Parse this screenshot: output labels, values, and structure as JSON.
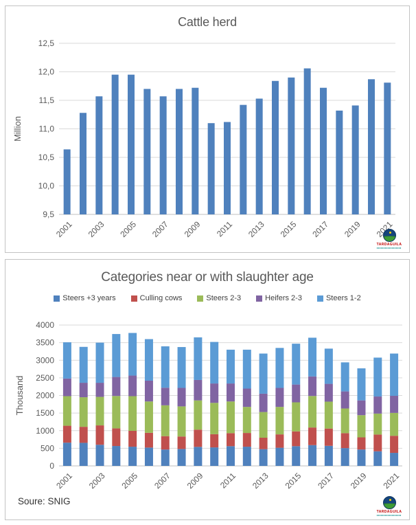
{
  "logo": {
    "text": "TARDAGUILA"
  },
  "chart_data": [
    {
      "type": "bar",
      "title": "Cattle herd",
      "ylabel": "Million",
      "ylim": [
        9.5,
        12.5
      ],
      "yticks": [
        9.5,
        10.0,
        10.5,
        11.0,
        11.5,
        12.0,
        12.5
      ],
      "ytick_labels": [
        "9,5",
        "10,0",
        "10,5",
        "11,0",
        "11,5",
        "12,0",
        "12,5"
      ],
      "categories": [
        2001,
        2002,
        2003,
        2004,
        2005,
        2006,
        2007,
        2008,
        2009,
        2010,
        2011,
        2012,
        2013,
        2014,
        2015,
        2016,
        2017,
        2018,
        2019,
        2020,
        2021
      ],
      "xtick_labels": [
        "2001",
        "2003",
        "2005",
        "2007",
        "2009",
        "2011",
        "2013",
        "2015",
        "2017",
        "2019",
        "2021"
      ],
      "values": [
        10.64,
        11.28,
        11.57,
        11.95,
        11.95,
        11.7,
        11.57,
        11.7,
        11.72,
        11.1,
        11.12,
        11.42,
        11.53,
        11.84,
        11.9,
        12.06,
        11.72,
        11.32,
        11.41,
        11.87,
        11.81
      ],
      "bar_color": "#4F81BD",
      "grid": true,
      "legend_position": "none"
    },
    {
      "type": "bar",
      "stacked": true,
      "title": "Categories near or with slaughter age",
      "ylabel": "Thousand",
      "ylim": [
        0,
        4000
      ],
      "yticks": [
        0,
        500,
        1000,
        1500,
        2000,
        2500,
        3000,
        3500,
        4000
      ],
      "ytick_labels": [
        "0",
        "500",
        "1000",
        "1500",
        "2000",
        "2500",
        "3000",
        "3500",
        "4000"
      ],
      "categories": [
        2001,
        2002,
        2003,
        2004,
        2005,
        2006,
        2007,
        2008,
        2009,
        2010,
        2011,
        2012,
        2013,
        2014,
        2015,
        2016,
        2017,
        2018,
        2019,
        2020,
        2021
      ],
      "xtick_labels": [
        "2001",
        "2003",
        "2005",
        "2007",
        "2009",
        "2011",
        "2013",
        "2015",
        "2017",
        "2019",
        "2021"
      ],
      "series": [
        {
          "name": "Steers +3 years",
          "color": "#4F81BD",
          "values": [
            660,
            655,
            600,
            565,
            545,
            520,
            465,
            480,
            540,
            525,
            560,
            545,
            475,
            515,
            560,
            590,
            570,
            505,
            465,
            415,
            370
          ]
        },
        {
          "name": "Culling cows",
          "color": "#C0504D",
          "values": [
            480,
            455,
            550,
            500,
            450,
            420,
            380,
            355,
            490,
            375,
            370,
            390,
            325,
            380,
            420,
            500,
            490,
            425,
            345,
            475,
            485
          ]
        },
        {
          "name": "Steers 2-3",
          "color": "#9BBB59",
          "values": [
            840,
            840,
            810,
            920,
            985,
            890,
            875,
            855,
            830,
            890,
            900,
            740,
            730,
            780,
            825,
            895,
            765,
            700,
            630,
            595,
            650
          ]
        },
        {
          "name": "Heifers 2-3",
          "color": "#8064A2",
          "values": [
            500,
            410,
            400,
            540,
            585,
            590,
            500,
            525,
            580,
            550,
            510,
            520,
            520,
            540,
            505,
            555,
            505,
            485,
            420,
            485,
            485
          ]
        },
        {
          "name": "Steers 1-2",
          "color": "#5B9BD5",
          "values": [
            1030,
            1020,
            1140,
            1220,
            1210,
            1180,
            1175,
            1160,
            1210,
            1180,
            960,
            1105,
            1140,
            1135,
            1160,
            1100,
            1000,
            825,
            910,
            1105,
            1200
          ]
        }
      ],
      "grid": true,
      "legend_position": "top",
      "source_note": "Soure: SNIG"
    }
  ]
}
